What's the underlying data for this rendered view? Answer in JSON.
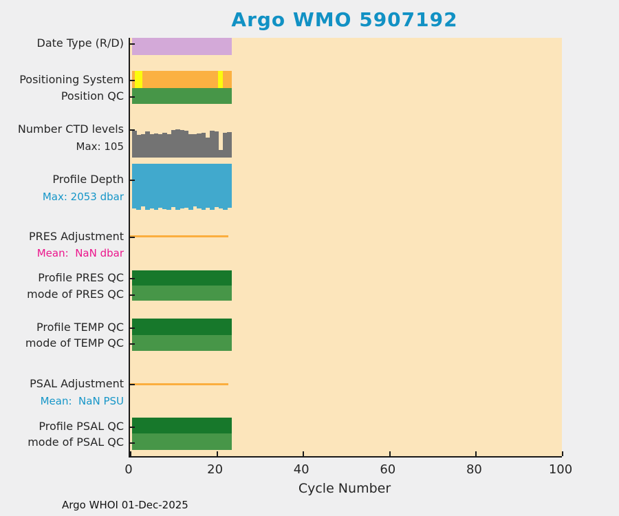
{
  "title": "Argo WMO 5907192",
  "footer": "Argo WHOI 01-Dec-2025",
  "colors": {
    "figure_background": "#efeff0",
    "plot_background": "#fce5bb",
    "title_blue": "#1191c4",
    "info_blue": "#1696c8",
    "info_magenta": "#ec168c",
    "plum": "#d3a9d8",
    "orange": "#fbb142",
    "yellow": "#fbfb0e",
    "green_mid": "#479648",
    "green_dark": "#17782b",
    "gray": "#737373",
    "depth_blue": "#41a9cd",
    "adjustment_line": "#fbae3e",
    "axis": "#1a1a1a"
  },
  "chart_data": {
    "type": "bar",
    "orientation": "horizontal banded rows vs cycle number",
    "title": "Argo WMO 5907192",
    "xlabel": "Cycle Number",
    "x": {
      "range": [
        0,
        100
      ],
      "ticks": [
        0,
        20,
        40,
        60,
        80,
        100
      ]
    },
    "cycles_shown": 23,
    "rows": [
      {
        "id": "date_type",
        "label": "Date Type (R/D)",
        "style": "constant",
        "color": "#d3a9d8",
        "extent": [
          0.4,
          23.6
        ]
      },
      {
        "id": "positioning_system",
        "label": "Positioning System",
        "style": "constant",
        "color": "#fbb142",
        "extent": [
          0.4,
          23.6
        ],
        "segments": [
          {
            "range": [
              1.1,
              2.9
            ],
            "color": "#fbfb0e"
          },
          {
            "range": [
              20.4,
              21.5
            ],
            "color": "#fbfb0e"
          }
        ]
      },
      {
        "id": "position_qc",
        "label": "Position QC",
        "style": "constant",
        "color": "#479648",
        "extent": [
          0.4,
          23.6
        ]
      },
      {
        "id": "ctd_levels",
        "label": "Number CTD levels",
        "sublabel": "Max: 105",
        "sublabel_color": "#262626",
        "style": "bars-up",
        "color": "#737373",
        "max": 105,
        "values": [
          100,
          85,
          88,
          97,
          86,
          90,
          86,
          92,
          88,
          103,
          105,
          103,
          100,
          88,
          86,
          90,
          92,
          75,
          100,
          97,
          28,
          92,
          95
        ]
      },
      {
        "id": "profile_depth",
        "label": "Profile Depth",
        "sublabel": "Max: 2053 dbar",
        "sublabel_color": "#1696c8",
        "style": "bars-down",
        "color": "#41a9cd",
        "max": 2053,
        "values": [
          2000,
          2053,
          1890,
          2053,
          1980,
          2053,
          1950,
          2010,
          2053,
          1920,
          2053,
          1995,
          1950,
          2053,
          1900,
          2000,
          2053,
          1960,
          2053,
          1920,
          2005,
          2053,
          1965
        ]
      },
      {
        "id": "pres_adjustment",
        "label": "PRES Adjustment",
        "sublabel": "Mean:  NaN dbar",
        "sublabel_color": "#ec168c",
        "style": "line",
        "color": "#fbae3e",
        "extent": [
          0,
          22.8
        ]
      },
      {
        "id": "profile_pres_qc",
        "label": "Profile PRES QC",
        "style": "constant",
        "color": "#17782b",
        "extent": [
          0.4,
          23.6
        ]
      },
      {
        "id": "mode_pres_qc",
        "label": "mode of PRES QC",
        "style": "constant",
        "color": "#479648",
        "extent": [
          0.4,
          23.6
        ]
      },
      {
        "id": "profile_temp_qc",
        "label": "Profile TEMP QC",
        "style": "constant",
        "color": "#17782b",
        "extent": [
          0.4,
          23.6
        ]
      },
      {
        "id": "mode_temp_qc",
        "label": "mode of TEMP QC",
        "style": "constant",
        "color": "#479648",
        "extent": [
          0.4,
          23.6
        ]
      },
      {
        "id": "psal_adjustment",
        "label": "PSAL Adjustment",
        "sublabel": "Mean:  NaN PSU",
        "sublabel_color": "#1696c8",
        "style": "line",
        "color": "#fbae3e",
        "extent": [
          0,
          22.8
        ]
      },
      {
        "id": "profile_psal_qc",
        "label": "Profile PSAL QC",
        "style": "constant",
        "color": "#17782b",
        "extent": [
          0.4,
          23.6
        ]
      },
      {
        "id": "mode_psal_qc",
        "label": "mode of PSAL QC",
        "style": "constant",
        "color": "#479648",
        "extent": [
          0.4,
          23.6
        ]
      }
    ]
  }
}
